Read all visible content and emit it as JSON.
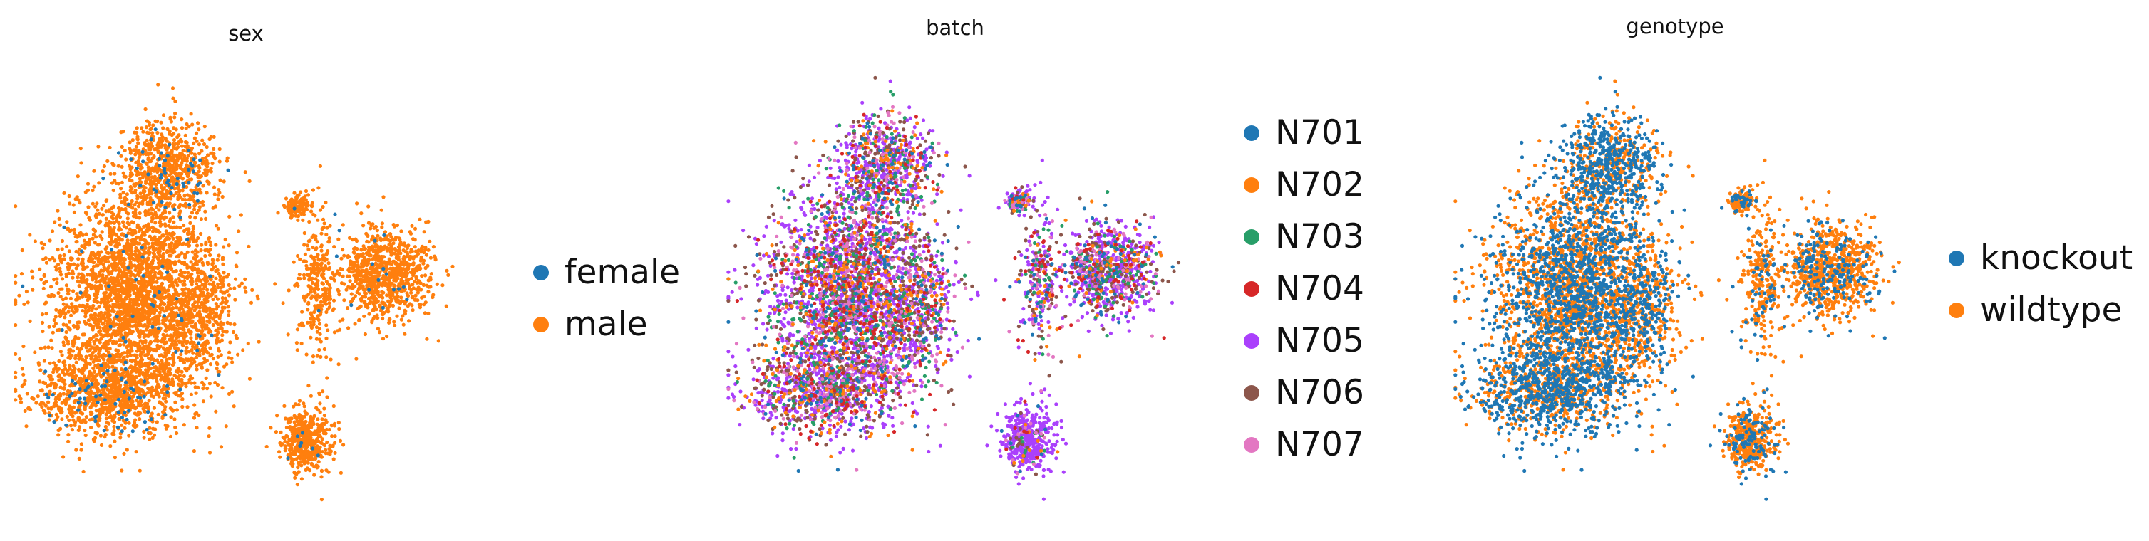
{
  "chart_data": [
    {
      "type": "scatter",
      "title": "sex",
      "legend": "right",
      "categories": [
        "female",
        "male"
      ],
      "colors": [
        "#1f77b4",
        "#ff7f0e"
      ],
      "proportions": [
        0.03,
        0.97
      ]
    },
    {
      "type": "scatter",
      "title": "batch",
      "legend": "right",
      "categories": [
        "N701",
        "N702",
        "N703",
        "N704",
        "N705",
        "N706",
        "N707"
      ],
      "colors": [
        "#1f77b4",
        "#ff7f0e",
        "#279e68",
        "#d62728",
        "#aa40fc",
        "#8c564b",
        "#e377c2"
      ],
      "proportions": [
        0.06,
        0.08,
        0.1,
        0.07,
        0.42,
        0.17,
        0.1
      ]
    },
    {
      "type": "scatter",
      "title": "genotype",
      "legend": "right",
      "categories": [
        "knockout",
        "wildtype"
      ],
      "colors": [
        "#1f77b4",
        "#ff7f0e"
      ],
      "proportions": [
        0.45,
        0.55
      ]
    }
  ]
}
